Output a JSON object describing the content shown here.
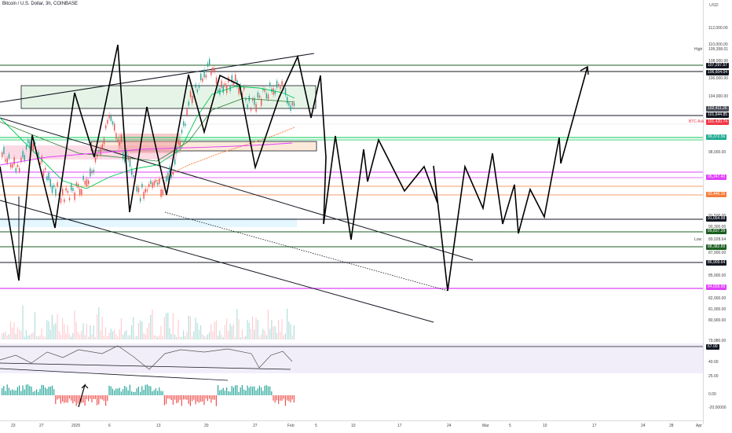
{
  "header": {
    "title": "Bitcoin / U.S. Dollar, 3h, COINBASE",
    "currency": "USD"
  },
  "price_axis": {
    "ticks": [
      "112,000.00",
      "110,000.00",
      "108,000.00",
      "106,000.00",
      "104,000.00",
      "98,000.00",
      "91,500.00",
      "90,300.00",
      "87,900.00",
      "85,900.00",
      "82,900.00",
      "81,900.00",
      "80,900.00",
      "79,980.00"
    ],
    "high_label": "High",
    "high_value": "109,358.01",
    "low_label": "Low",
    "low_value": "89,028.64",
    "badges": [
      {
        "text": "107,297.57",
        "bg": "#131722",
        "fg": "#ffffff"
      },
      {
        "text": "106,604.04",
        "bg": "#131722",
        "fg": "#ffffff"
      },
      {
        "text": "102,411.26",
        "bg": "#4a4e58",
        "fg": "#ffffff"
      },
      {
        "text": "101,644.85",
        "bg": "#131722",
        "fg": "#ffffff"
      },
      {
        "text": "101,420.74",
        "bg": "#f23645",
        "fg": "#ffffff"
      },
      {
        "text": "99,372.56",
        "bg": "#22ab94",
        "fg": "#ffffff"
      },
      {
        "text": "95,247.42",
        "bg": "#e040fb",
        "fg": "#ffffff"
      },
      {
        "text": "93,446.16",
        "bg": "#f57c3a",
        "fg": "#ffffff"
      },
      {
        "text": "91,054.98",
        "bg": "#131722",
        "fg": "#ffffff"
      },
      {
        "text": "89,837.39",
        "bg": "#1b5e20",
        "fg": "#ffffff"
      },
      {
        "text": "88,382.89",
        "bg": "#1b5e20",
        "fg": "#ffffff"
      },
      {
        "text": "86,909.64",
        "bg": "#131722",
        "fg": "#ffffff"
      },
      {
        "text": "84,659.99",
        "bg": "#e040fb",
        "fg": "#ffffff"
      }
    ],
    "side_text": "BTC Ask"
  },
  "rsi": {
    "value_badge": "67.00",
    "ticks": [
      "40.00",
      "25.00"
    ]
  },
  "osc": {
    "ticks": [
      "0.00",
      "-20.00000"
    ]
  },
  "time_axis": [
    "23",
    "27",
    "2025",
    "6",
    "13",
    "20",
    "27",
    "Feb",
    "5",
    "10",
    "17",
    "24",
    "Mar",
    "5",
    "10",
    "17",
    "24",
    "28",
    "Apr"
  ]
}
